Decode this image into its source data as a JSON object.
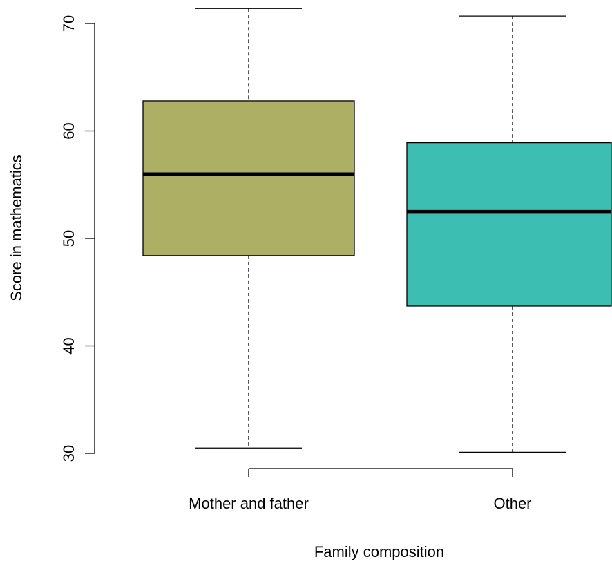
{
  "chart_data": {
    "type": "boxplot",
    "xlabel": "Family composition",
    "ylabel": "Score in mathematics",
    "ylim": [
      30,
      71.5
    ],
    "yticks": [
      30,
      40,
      50,
      60,
      70
    ],
    "categories": [
      "Mother and father",
      "Other"
    ],
    "boxes": [
      {
        "category": "Mother and father",
        "min": 30.5,
        "q1": 48.4,
        "median": 56.0,
        "q3": 62.8,
        "max": 71.4,
        "color": "#ADAF65"
      },
      {
        "category": "Other",
        "min": 30.1,
        "q1": 43.7,
        "median": 52.5,
        "q3": 58.9,
        "max": 70.7,
        "color": "#3CBEB2"
      }
    ],
    "grid": false,
    "legend": "none"
  }
}
